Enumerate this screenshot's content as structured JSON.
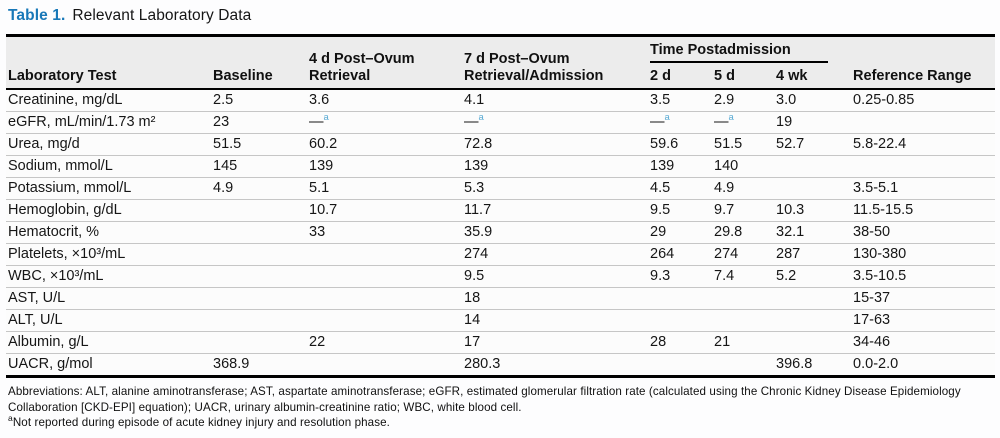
{
  "colors": {
    "title_accent": "#1878b8",
    "footnote_marker_blue": "#5aabd4",
    "header_band": "#ececec",
    "rule": "#000000",
    "row_separator": "#c6c6c6"
  },
  "title": {
    "label": "Table 1.",
    "text": "Relevant Laboratory Data"
  },
  "table": {
    "headers": {
      "lab_test": "Laboratory Test",
      "baseline": "Baseline",
      "post_4d": "4 d Post–Ovum Retrieval",
      "post_7d": "7 d Post–Ovum Retrieval/Admission",
      "time_postadmission": "Time Postadmission",
      "d2": "2 d",
      "d5": "5 d",
      "wk4": "4 wk",
      "reference_range": "Reference Range"
    },
    "rows": [
      {
        "cells": [
          "Creatinine, mg/dL",
          "2.5",
          "3.6",
          "4.1",
          "3.5",
          "2.9",
          "3.0",
          "0.25-0.85"
        ]
      },
      {
        "cells": [
          "eGFR, mL/min/1.73 m²",
          "23",
          {
            "text": "—",
            "sup": "a"
          },
          {
            "text": "—",
            "sup": "a"
          },
          {
            "text": "—",
            "sup": "a"
          },
          {
            "text": "—",
            "sup": "a"
          },
          "19",
          ""
        ]
      },
      {
        "cells": [
          "Urea, mg/d",
          "51.5",
          "60.2",
          "72.8",
          "59.6",
          "51.5",
          "52.7",
          "5.8-22.4"
        ]
      },
      {
        "cells": [
          "Sodium, mmol/L",
          "145",
          "139",
          "139",
          "139",
          "140",
          "",
          ""
        ]
      },
      {
        "cells": [
          "Potassium, mmol/L",
          "4.9",
          "5.1",
          "5.3",
          "4.5",
          "4.9",
          "",
          "3.5-5.1"
        ]
      },
      {
        "cells": [
          "Hemoglobin, g/dL",
          "",
          "10.7",
          "11.7",
          "9.5",
          "9.7",
          "10.3",
          "11.5-15.5"
        ]
      },
      {
        "cells": [
          "Hematocrit, %",
          "",
          "33",
          "35.9",
          "29",
          "29.8",
          "32.1",
          "38-50"
        ]
      },
      {
        "cells": [
          "Platelets, ×10³/mL",
          "",
          "",
          "274",
          "264",
          "274",
          "287",
          "130-380"
        ]
      },
      {
        "cells": [
          "WBC, ×10³/mL",
          "",
          "",
          "9.5",
          "9.3",
          "7.4",
          "5.2",
          "3.5-10.5"
        ]
      },
      {
        "cells": [
          "AST, U/L",
          "",
          "",
          "18",
          "",
          "",
          "",
          "15-37"
        ]
      },
      {
        "cells": [
          "ALT, U/L",
          "",
          "",
          "14",
          "",
          "",
          "",
          "17-63"
        ]
      },
      {
        "cells": [
          "Albumin, g/L",
          "",
          "22",
          "17",
          "28",
          "21",
          "",
          "34-46"
        ]
      },
      {
        "cells": [
          "UACR, g/mol",
          "368.9",
          "",
          "280.3",
          "",
          "",
          "396.8",
          "0.0-2.0"
        ]
      }
    ]
  },
  "footnotes": {
    "abbreviations": "Abbreviations: ALT, alanine aminotransferase; AST, aspartate aminotransferase; eGFR, estimated glomerular filtration rate (calculated using the Chronic Kidney Disease Epidemiology Collaboration [CKD-EPI] equation); UACR, urinary albumin-creatinine ratio; WBC, white blood cell.",
    "note_a_marker": "a",
    "note_a_text": "Not reported during episode of acute kidney injury and resolution phase."
  }
}
